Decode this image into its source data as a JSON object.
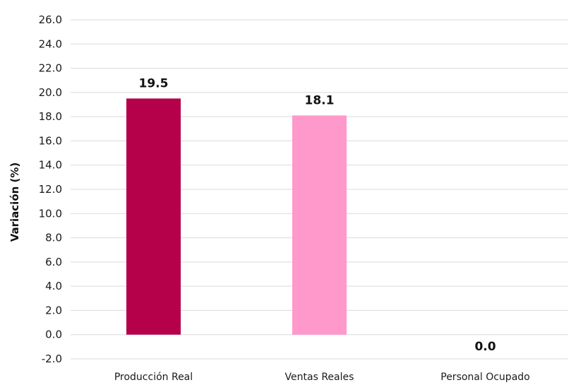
{
  "chart_data": {
    "type": "bar",
    "title": "",
    "xlabel": "",
    "ylabel": "Variación (%)",
    "categories": [
      "Producción Real",
      "Ventas Reales",
      "Personal Ocupado"
    ],
    "values": [
      19.5,
      18.1,
      0.0
    ],
    "data_labels": [
      "19.5",
      "18.1",
      "0.0"
    ],
    "colors": [
      "#b5004a",
      "#ff99cc",
      "#ff99cc"
    ],
    "ylim": [
      -2,
      26
    ],
    "yticks": [
      -2,
      0,
      2,
      4,
      6,
      8,
      10,
      12,
      14,
      16,
      18,
      20,
      22,
      24,
      26
    ],
    "ytick_labels": [
      "-2.0",
      "0.0",
      "2.0",
      "4.0",
      "6.0",
      "8.0",
      "10.0",
      "12.0",
      "14.0",
      "16.0",
      "18.0",
      "20.0",
      "22.0",
      "24.0",
      "26.0"
    ],
    "grid": true,
    "legend": "none"
  }
}
